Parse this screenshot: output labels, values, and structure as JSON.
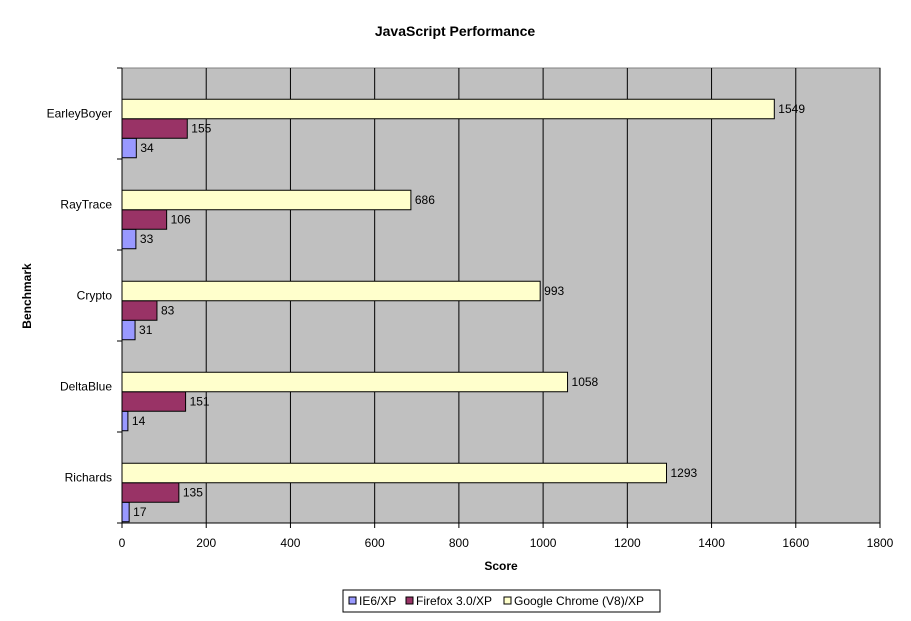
{
  "chart_data": {
    "type": "bar",
    "orientation": "horizontal",
    "title": "JavaScript Performance",
    "xlabel": "Score",
    "ylabel": "Benchmark",
    "xlim": [
      0,
      1800
    ],
    "x_ticks": [
      0,
      200,
      400,
      600,
      800,
      1000,
      1200,
      1400,
      1600,
      1800
    ],
    "categories": [
      "EarleyBoyer",
      "RayTrace",
      "Crypto",
      "DeltaBlue",
      "Richards"
    ],
    "series": [
      {
        "name": "IE6/XP",
        "color": "#9999ff",
        "values": [
          34,
          33,
          31,
          14,
          17
        ]
      },
      {
        "name": "Firefox 3.0/XP",
        "color": "#993366",
        "values": [
          155,
          106,
          83,
          151,
          135
        ]
      },
      {
        "name": "Google Chrome (V8)/XP",
        "color": "#ffffcc",
        "values": [
          1549,
          686,
          993,
          1058,
          1293
        ]
      }
    ],
    "plot_background": "#c0c0c0",
    "grid": true,
    "legend_position": "bottom",
    "data_labels": true
  }
}
